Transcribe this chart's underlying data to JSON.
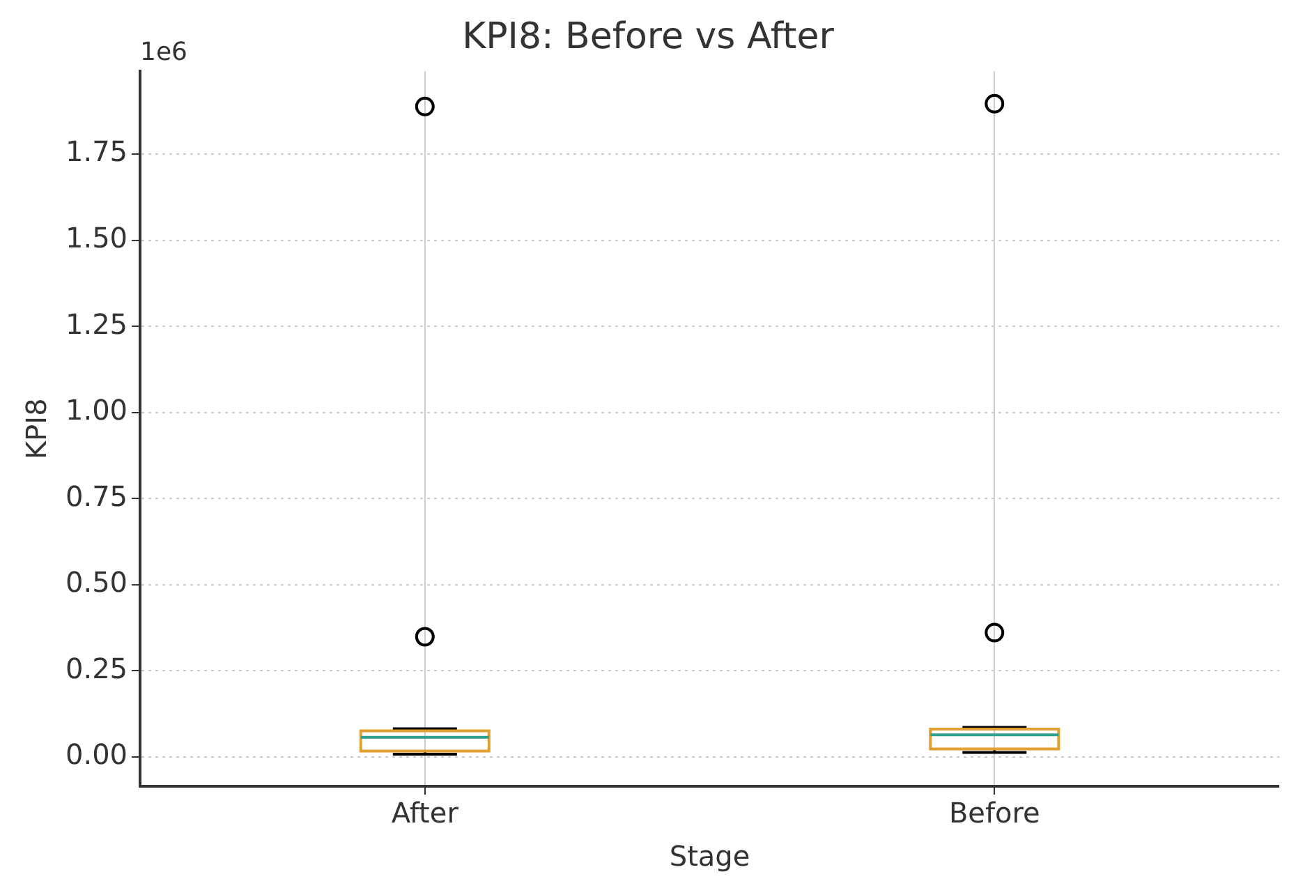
{
  "chart_data": {
    "type": "box",
    "title": "KPI8: Before vs After",
    "xlabel": "Stage",
    "ylabel": "KPI8",
    "categories": [
      "After",
      "Before"
    ],
    "boxes": [
      {
        "low": 0.008,
        "q1": 0.017,
        "median": 0.057,
        "q3": 0.076,
        "high": 0.082,
        "outliers": [
          0.349,
          1.888
        ]
      },
      {
        "low": 0.013,
        "q1": 0.023,
        "median": 0.064,
        "q3": 0.081,
        "high": 0.086,
        "outliers": [
          0.361,
          1.896
        ]
      }
    ],
    "color": "#e0a030",
    "ylim": [
      -0.085,
      1.99
    ],
    "yticks": [
      {
        "value": 0,
        "label": "0.00"
      },
      {
        "value": 0.25,
        "label": "0.25"
      },
      {
        "value": 0.5,
        "label": "0.50"
      },
      {
        "value": 0.75,
        "label": "0.75"
      },
      {
        "value": 1,
        "label": "1.00"
      },
      {
        "value": 1.25,
        "label": "1.25"
      },
      {
        "value": 1.5,
        "label": "1.50"
      },
      {
        "value": 1.75,
        "label": "1.75"
      }
    ],
    "annotations": [
      "1e6"
    ],
    "grid": true
  }
}
